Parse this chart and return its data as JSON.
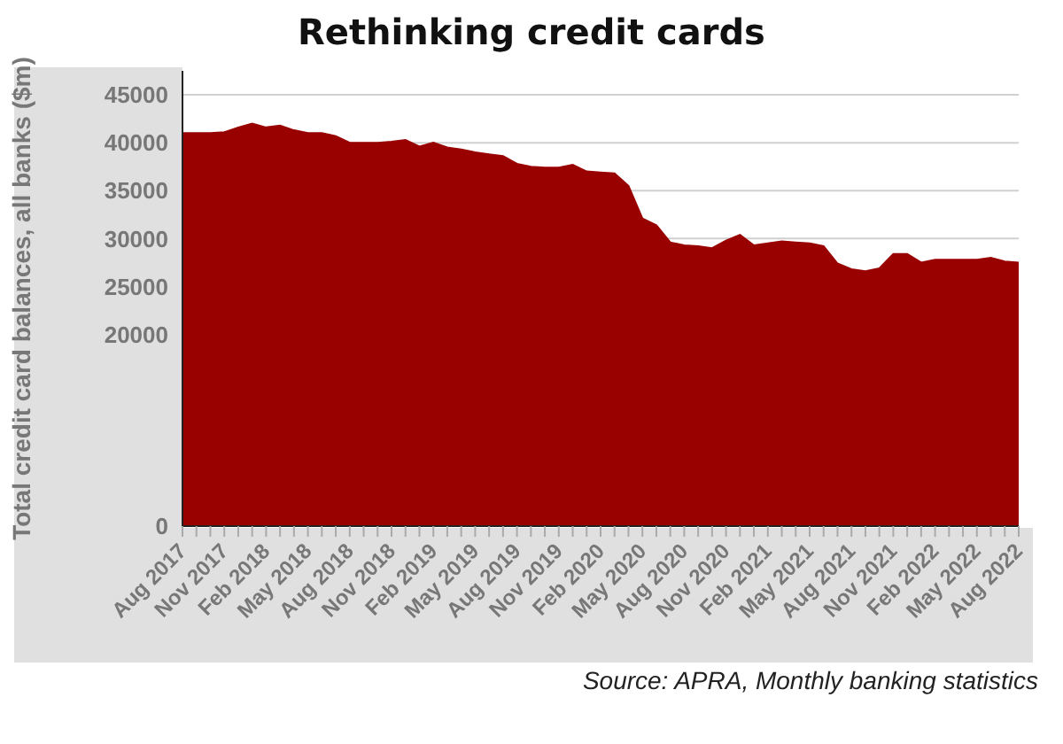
{
  "chart_data": {
    "type": "area",
    "title": "Rethinking credit cards",
    "ylabel": "Total credit card balances, all banks ($m)",
    "annotations": [
      "Source: APRA, Monthly banking statistics"
    ],
    "categories": [
      "Aug 2017",
      null,
      null,
      "Nov 2017",
      null,
      null,
      "Feb 2018",
      null,
      null,
      "May 2018",
      null,
      null,
      "Aug 2018",
      null,
      null,
      "Nov 2018",
      null,
      null,
      "Feb 2019",
      null,
      null,
      "May 2019",
      null,
      null,
      "Aug 2019",
      null,
      null,
      "Nov 2019",
      null,
      null,
      "Feb 2020",
      null,
      null,
      "May 2020",
      null,
      null,
      "Aug 2020",
      null,
      null,
      "Nov 2020",
      null,
      null,
      "Feb 2021",
      null,
      null,
      "May 2021",
      null,
      null,
      "Aug 2021",
      null,
      null,
      "Nov 2021",
      null,
      null,
      "Feb 2022",
      null,
      null,
      "May 2022",
      null,
      null,
      "Aug 2022"
    ],
    "series": [
      {
        "color": "#990000",
        "values": [
          41000,
          41000,
          41000,
          41100,
          41600,
          42000,
          41600,
          41800,
          41300,
          41000,
          41000,
          40700,
          40000,
          40000,
          40000,
          40100,
          40300,
          39600,
          40000,
          39500,
          39300,
          39000,
          38800,
          38600,
          37800,
          37500,
          37400,
          37400,
          37700,
          37000,
          36900,
          36800,
          35500,
          32100,
          31400,
          29600,
          29300,
          29200,
          29000,
          29800,
          30400,
          29300,
          29500,
          29700,
          29600,
          29500,
          29200,
          27400,
          26800,
          26600,
          26900,
          28400,
          28400,
          27500,
          27800,
          27800,
          27800,
          27800,
          28000,
          27600,
          27500
        ]
      }
    ],
    "ylim": [
      0,
      47500
    ],
    "yticks": [
      0,
      20000,
      25000,
      30000,
      35000,
      40000,
      45000
    ],
    "grid": "y",
    "legend": false
  }
}
